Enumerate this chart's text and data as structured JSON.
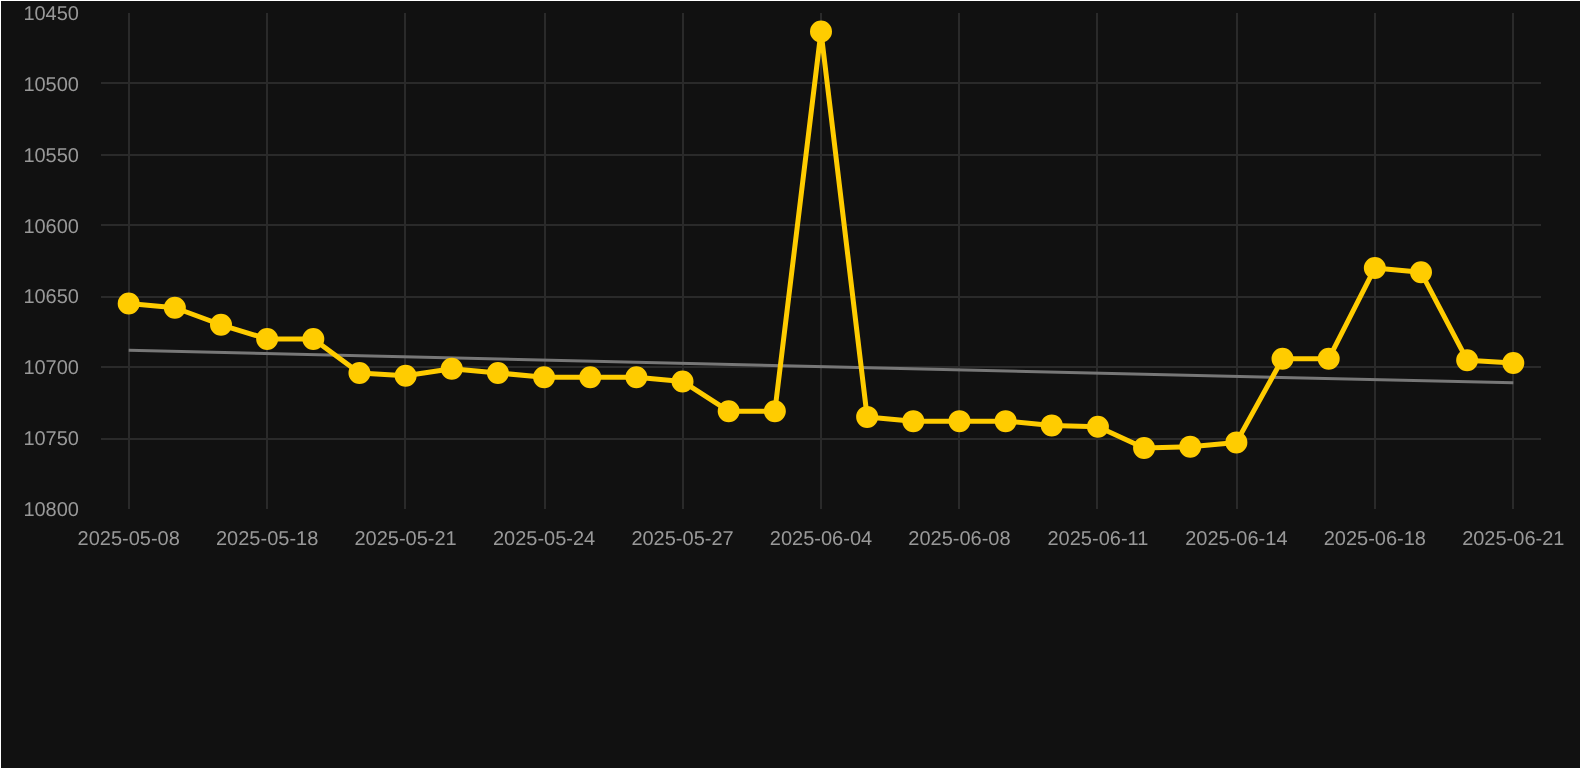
{
  "chart_data": {
    "type": "line",
    "categories": [
      "2025-05-08",
      null,
      null,
      "2025-05-18",
      null,
      null,
      "2025-05-21",
      null,
      null,
      "2025-05-24",
      null,
      null,
      "2025-05-27",
      null,
      null,
      "2025-06-04",
      null,
      null,
      "2025-06-08",
      null,
      null,
      "2025-06-11",
      null,
      null,
      "2025-06-14",
      null,
      null,
      "2025-06-18",
      null,
      null,
      "2025-06-21"
    ],
    "series": [
      {
        "color": "#ffcc00",
        "values": [
          10655,
          10658,
          10670,
          10680,
          10680,
          10704,
          10706,
          10701,
          10704,
          10707,
          10707,
          10707,
          10710,
          10731,
          10731,
          10463,
          10735,
          10738,
          10738,
          10738,
          10741,
          10742,
          10757,
          10756,
          10753,
          10694,
          10694,
          10630,
          10633,
          10695,
          10697
        ],
        "marker": "circle"
      },
      {
        "type": "line",
        "color": "#777777",
        "values": [
          10688,
          null,
          null,
          null,
          null,
          null,
          null,
          null,
          null,
          null,
          null,
          null,
          null,
          null,
          null,
          null,
          null,
          null,
          null,
          null,
          null,
          null,
          null,
          null,
          null,
          null,
          null,
          null,
          null,
          null,
          10711
        ],
        "marker": "none"
      }
    ],
    "ylim": [
      10800,
      10450
    ],
    "yticks": [
      10450,
      10500,
      10550,
      10600,
      10650,
      10700,
      10750,
      10800
    ],
    "grid": true
  }
}
